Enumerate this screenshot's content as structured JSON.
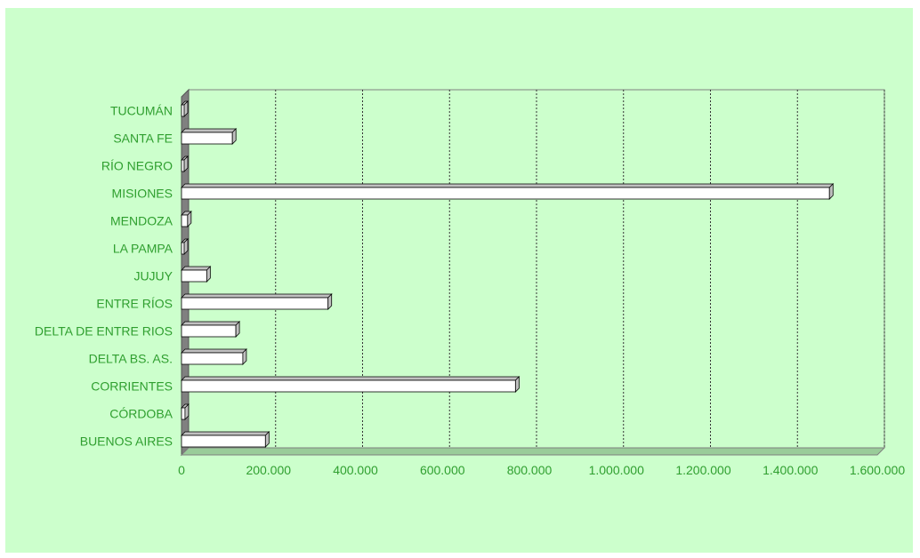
{
  "chart_data": {
    "type": "bar",
    "orientation": "horizontal",
    "style": "3d",
    "categories": [
      "BUENOS AIRES",
      "CÓRDOBA",
      "CORRIENTES",
      "DELTA BS. AS.",
      "DELTA DE ENTRE RIOS",
      "ENTRE RÍOS",
      "JUJUY",
      "LA PAMPA",
      "MENDOZA",
      "MISIONES",
      "RÍO NEGRO",
      "SANTA FE",
      "TUCUMÁN"
    ],
    "values": [
      193000,
      8000,
      768000,
      141000,
      125000,
      337000,
      58000,
      3000,
      14000,
      1490000,
      3000,
      117000,
      4000
    ],
    "xlim": [
      0,
      1600000
    ],
    "xticks": [
      0,
      200000,
      400000,
      600000,
      800000,
      1000000,
      1200000,
      1400000,
      1600000
    ],
    "xtick_labels": [
      "0",
      "200.000",
      "400.000",
      "600.000",
      "800.000",
      "1.000.000",
      "1.200.000",
      "1.400.000",
      "1.600.000"
    ],
    "title": "",
    "xlabel": "",
    "ylabel": "",
    "grid": "vertical dashed",
    "legend": "none",
    "colors": {
      "background": "#ccffcc",
      "plot_back_wall": "#ccffcc",
      "floor": "#99cc99",
      "side_wall": "#808080",
      "bar_fill": "#ffffff",
      "bar_shade": "#c0c0c0",
      "label_text": "#2f9f2f",
      "grid": "#333333"
    }
  }
}
